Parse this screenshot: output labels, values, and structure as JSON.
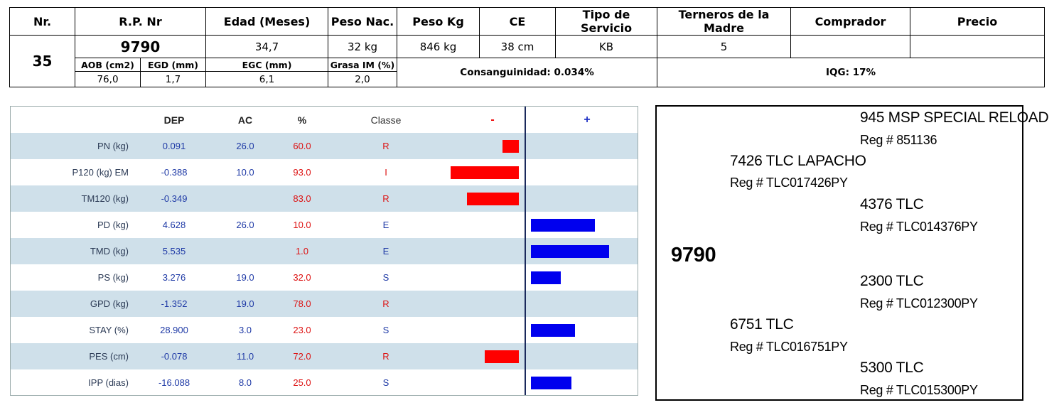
{
  "header": {
    "col_nr": "Nr.",
    "col_rp": "R.P. Nr",
    "col_edad": "Edad (Meses)",
    "col_peso_nac": "Peso Nac.",
    "col_peso_kg": "Peso Kg",
    "col_ce": "CE",
    "col_tipo": "Tipo de Servicio",
    "col_terneros": "Terneros de la Madre",
    "col_comprador": "Comprador",
    "col_precio": "Precio",
    "nr": "35",
    "rp": "9790",
    "edad": "34,7",
    "peso_nac": "32 kg",
    "peso_kg": "846 kg",
    "ce": "38 cm",
    "tipo": "KB",
    "terneros": "5",
    "comprador": "",
    "precio": "",
    "sub_aob_label": "AOB (cm2)",
    "sub_egd_label": "EGD (mm)",
    "sub_egc_label": "EGC (mm)",
    "sub_grasa_label": "Grasa IM (%)",
    "sub_aob": "76,0",
    "sub_egd": "1,7",
    "sub_egc": "6,1",
    "sub_grasa": "2,0",
    "consanguinidad": "Consanguinidad: 0.034%",
    "iqg": "IQG: 17%"
  },
  "dep_panel": {
    "col_dep": "DEP",
    "col_ac": "AC",
    "col_pct": "%",
    "col_classe": "Classe",
    "col_minus": "-",
    "col_plus": "+",
    "rows": [
      {
        "name": "PN (kg)",
        "dep": "0.091",
        "ac": "26.0",
        "pct": "60.0",
        "classe": "R"
      },
      {
        "name": "P120 (kg) EM",
        "dep": "-0.388",
        "ac": "10.0",
        "pct": "93.0",
        "classe": "I"
      },
      {
        "name": "TM120 (kg)",
        "dep": "-0.349",
        "ac": "",
        "pct": "83.0",
        "classe": "R"
      },
      {
        "name": "PD (kg)",
        "dep": "4.628",
        "ac": "26.0",
        "pct": "10.0",
        "classe": "E"
      },
      {
        "name": "TMD (kg)",
        "dep": "5.535",
        "ac": "",
        "pct": "1.0",
        "classe": "E"
      },
      {
        "name": "PS (kg)",
        "dep": "3.276",
        "ac": "19.0",
        "pct": "32.0",
        "classe": "S"
      },
      {
        "name": "GPD (kg)",
        "dep": "-1.352",
        "ac": "19.0",
        "pct": "78.0",
        "classe": "R"
      },
      {
        "name": "STAY (%)",
        "dep": "28.900",
        "ac": "3.0",
        "pct": "23.0",
        "classe": "S"
      },
      {
        "name": "PES (cm)",
        "dep": "-0.078",
        "ac": "11.0",
        "pct": "72.0",
        "classe": "R"
      },
      {
        "name": "IPP (dias)",
        "dep": "-16.088",
        "ac": "8.0",
        "pct": "25.0",
        "classe": "S"
      }
    ],
    "bar_levels": [
      {
        "side": "minus",
        "level": 0.24
      },
      {
        "side": "minus",
        "level": 1.0
      },
      {
        "side": "minus",
        "level": 0.76
      },
      {
        "side": "plus",
        "level": 0.82
      },
      {
        "side": "plus",
        "level": 1.0
      },
      {
        "side": "plus",
        "level": 0.38
      },
      {
        "side": "plus_none",
        "level": 0
      },
      {
        "side": "plus",
        "level": 0.56
      },
      {
        "side": "minus",
        "level": 0.5
      },
      {
        "side": "plus",
        "level": 0.52
      }
    ],
    "colors": {
      "negative": "#ff0000",
      "positive": "#0000ee",
      "shade": "#cfe0ea",
      "classe_red": "#dd1111",
      "classe_blue": "#1f3aa6"
    }
  },
  "pedigree": {
    "animal": "9790",
    "sire": {
      "name": "7426 TLC LAPACHO",
      "reg": "Reg # TLC017426PY"
    },
    "sire_sire": {
      "name": "945 MSP SPECIAL RELOAD",
      "reg": "Reg # 851136"
    },
    "sire_dam": {
      "name": "4376 TLC",
      "reg": "Reg # TLC014376PY"
    },
    "dam": {
      "name": "6751 TLC",
      "reg": "Reg # TLC016751PY"
    },
    "dam_sire": {
      "name": "2300 TLC",
      "reg": "Reg # TLC012300PY"
    },
    "dam_dam": {
      "name": "5300 TLC",
      "reg": "Reg # TLC015300PY"
    }
  }
}
